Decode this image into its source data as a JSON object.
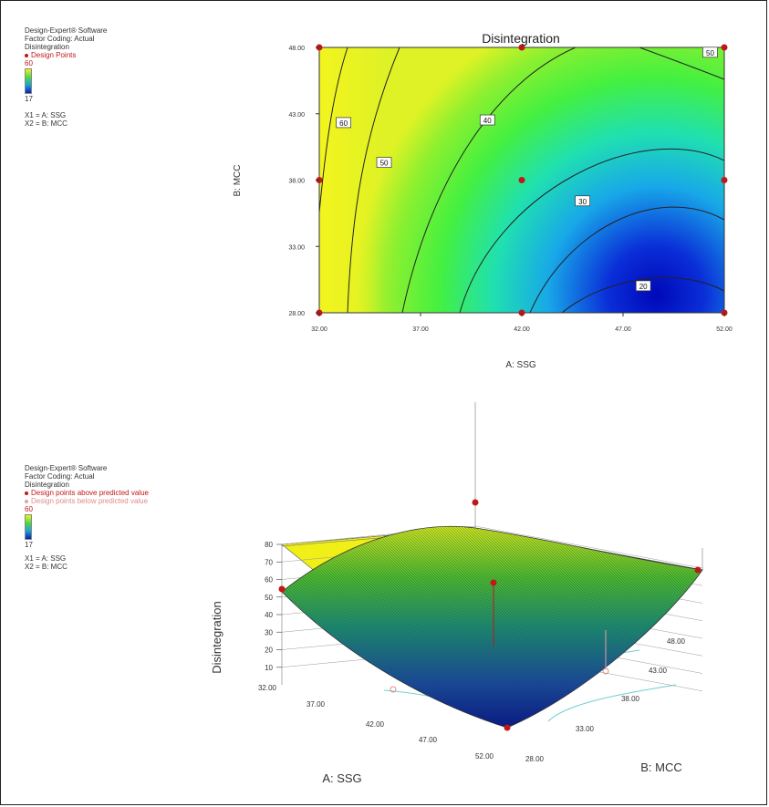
{
  "chart_data": [
    {
      "type": "contour",
      "title": "Disintegration",
      "xlabel": "A: SSG",
      "ylabel": "B: MCC",
      "xlim": [
        32,
        52
      ],
      "ylim": [
        28,
        48
      ],
      "x_ticks": [
        "32.00",
        "37.00",
        "42.00",
        "47.00",
        "52.00"
      ],
      "y_ticks": [
        "28.00",
        "33.00",
        "38.00",
        "43.00",
        "48.00"
      ],
      "contour_levels": [
        20,
        30,
        40,
        50,
        60
      ],
      "contour_labels": [
        {
          "text": "60",
          "x": 33.2,
          "y": 42.3
        },
        {
          "text": "50",
          "x": 35.2,
          "y": 39.3
        },
        {
          "text": "40",
          "x": 40.3,
          "y": 42.5
        },
        {
          "text": "30",
          "x": 45.0,
          "y": 36.4
        },
        {
          "text": "20",
          "x": 48.0,
          "y": 30.0
        },
        {
          "text": "50",
          "x": 51.3,
          "y": 47.6
        }
      ],
      "design_points": [
        {
          "x": 32,
          "y": 28
        },
        {
          "x": 32,
          "y": 38
        },
        {
          "x": 32,
          "y": 48
        },
        {
          "x": 42,
          "y": 28
        },
        {
          "x": 42,
          "y": 38
        },
        {
          "x": 42,
          "y": 48
        },
        {
          "x": 52,
          "y": 28
        },
        {
          "x": 52,
          "y": 38
        },
        {
          "x": 52,
          "y": 48
        }
      ],
      "legend": {
        "lines": [
          "Design-Expert® Software",
          "Factor Coding: Actual",
          "Disintegration"
        ],
        "points_label": "Design Points",
        "range_high": "60",
        "range_low": "17",
        "factors": [
          "X1 = A: SSG",
          "X2 = B: MCC"
        ]
      }
    },
    {
      "type": "surface3d",
      "xlabel": "A: SSG",
      "ylabel": "B: MCC",
      "zlabel": "Disintegration",
      "x_ticks": [
        "32.00",
        "37.00",
        "42.00",
        "47.00",
        "52.00"
      ],
      "y_ticks": [
        "28.00",
        "33.00",
        "38.00",
        "43.00",
        "48.00"
      ],
      "z_ticks": [
        "10",
        "20",
        "30",
        "40",
        "50",
        "60",
        "70",
        "80"
      ],
      "zlim": [
        0,
        80
      ],
      "legend": {
        "lines": [
          "Design-Expert® Software",
          "Factor Coding: Actual",
          "Disintegration"
        ],
        "above_label": "Design points above predicted value",
        "below_label": "Design points below predicted value",
        "range_high": "60",
        "range_low": "17",
        "factors": [
          "X1 = A: SSG",
          "X2 = B: MCC"
        ]
      }
    }
  ]
}
